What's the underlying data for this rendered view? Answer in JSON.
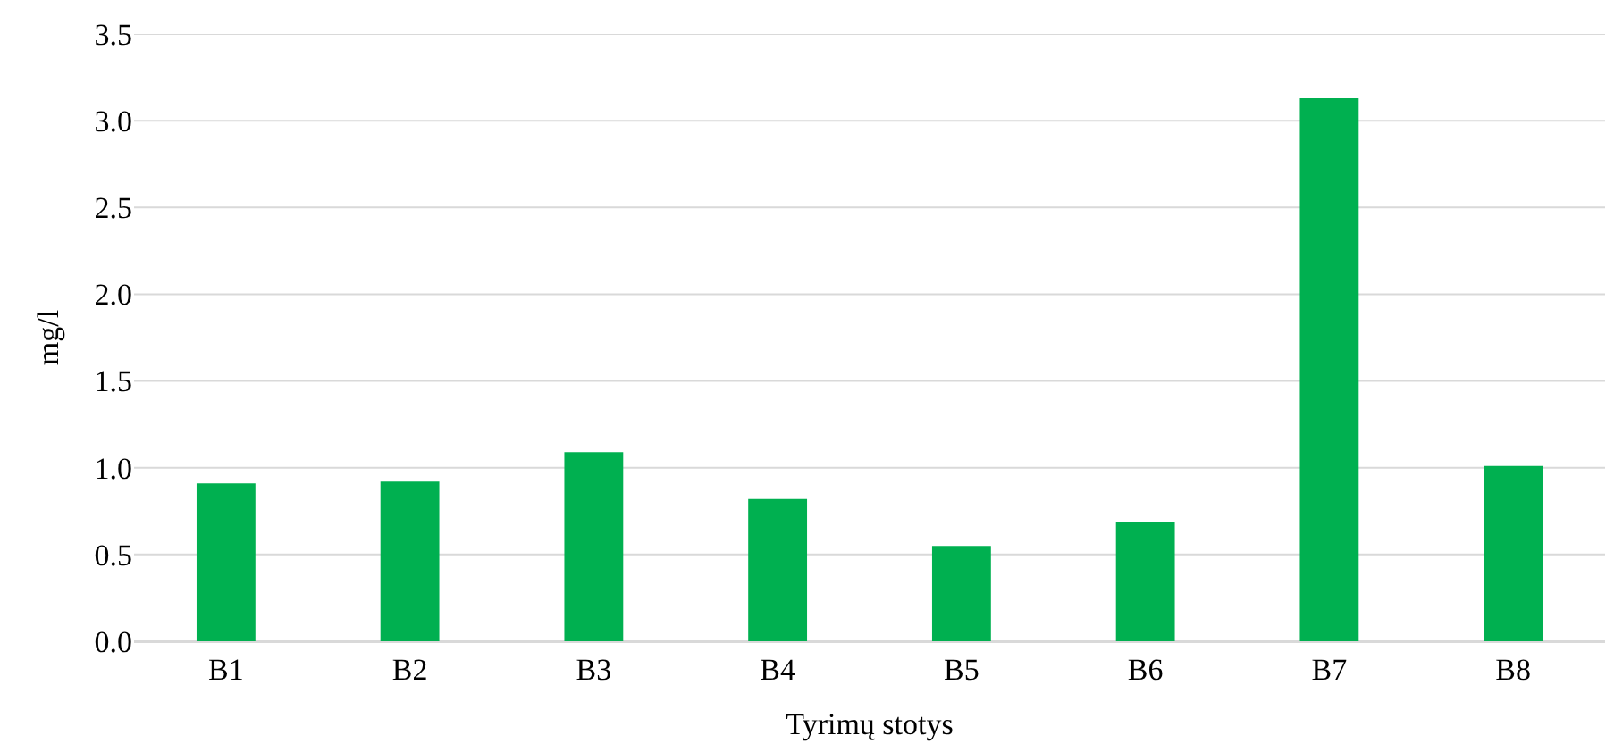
{
  "chart_data": {
    "type": "bar",
    "xlabel": "Tyrimų stotys",
    "ylabel": "mg/l",
    "categories": [
      "B1",
      "B2",
      "B3",
      "B4",
      "B5",
      "B6",
      "B7",
      "B8"
    ],
    "values": [
      0.91,
      0.92,
      1.09,
      0.82,
      0.55,
      0.69,
      3.13,
      1.01
    ],
    "color": "#00b050",
    "ylim": [
      0,
      3.5
    ],
    "yticks": [
      {
        "value": 0,
        "label": "0.0"
      },
      {
        "value": 0.5,
        "label": "0.5"
      },
      {
        "value": 1,
        "label": "1.0"
      },
      {
        "value": 1.5,
        "label": "1.5"
      },
      {
        "value": 2,
        "label": "2.0"
      },
      {
        "value": 2.5,
        "label": "2.5"
      },
      {
        "value": 3,
        "label": "3.0"
      },
      {
        "value": 3.5,
        "label": "3.5"
      }
    ],
    "grid": "y"
  }
}
